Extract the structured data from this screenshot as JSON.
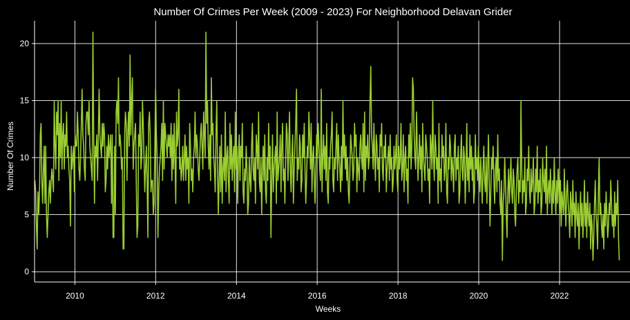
{
  "chart_data": {
    "type": "line",
    "title": "Number Of Crimes Per Week (2009 - 2023) For Neighborhood Delavan Grider",
    "xlabel": "Weeks",
    "ylabel": "Number Of Crimes",
    "xlim": [
      "2009-01-01",
      "2023-09-30"
    ],
    "ylim": [
      -0.9,
      22
    ],
    "x_ticks": [
      "2010",
      "2012",
      "2014",
      "2016",
      "2018",
      "2020",
      "2022"
    ],
    "y_ticks": [
      "0",
      "5",
      "10",
      "15",
      "20"
    ],
    "grid": true,
    "legend": "none",
    "background": "#000000",
    "line_color": "#9acd32",
    "grid_color": "#ffffff",
    "series": [
      {
        "start_week": "2009-01-04",
        "frequency": "weekly",
        "values": [
          8,
          7,
          4,
          2,
          7,
          5,
          7,
          12,
          13,
          8,
          6,
          9,
          11,
          6,
          11,
          5,
          3,
          5,
          7,
          8,
          6,
          8,
          9,
          8,
          7,
          15,
          11,
          9,
          14,
          12,
          15,
          8,
          13,
          10,
          15,
          9,
          12,
          13,
          9,
          12,
          11,
          14,
          10,
          11,
          9,
          8,
          4,
          11,
          9,
          10,
          11,
          7,
          12,
          11,
          11,
          14,
          12,
          9,
          8,
          10,
          13,
          16,
          12,
          11,
          9,
          8,
          13,
          14,
          14,
          12,
          15,
          11,
          10,
          9,
          8,
          21,
          12,
          6,
          11,
          10,
          12,
          8,
          12,
          16,
          12,
          11,
          10,
          13,
          11,
          13,
          12,
          7,
          8,
          11,
          9,
          12,
          10,
          11,
          12,
          6,
          12,
          3,
          3,
          11,
          5,
          14,
          15,
          13,
          17,
          11,
          12,
          11,
          9,
          10,
          2,
          2,
          12,
          14,
          13,
          8,
          12,
          14,
          11,
          19,
          12,
          15,
          17,
          9,
          11,
          12,
          13,
          8,
          3,
          4,
          12,
          11,
          14,
          9,
          10,
          15,
          13,
          10,
          7,
          9,
          11,
          8,
          3,
          13,
          14,
          12,
          7,
          8,
          8,
          5,
          6,
          11,
          16,
          12,
          10,
          3,
          7,
          9,
          10,
          11,
          13,
          8,
          15,
          9,
          13,
          12,
          11,
          10,
          12,
          11,
          12,
          10,
          13,
          8,
          12,
          9,
          13,
          10,
          6,
          14,
          11,
          12,
          16,
          9,
          10,
          8,
          9,
          11,
          8,
          10,
          12,
          8,
          11,
          9,
          10,
          6,
          13,
          11,
          8,
          9,
          7,
          10,
          11,
          14,
          10,
          12,
          11,
          9,
          8,
          10,
          12,
          13,
          11,
          9,
          14,
          12,
          10,
          21,
          13,
          15,
          11,
          9,
          12,
          8,
          17,
          12,
          13,
          10,
          9,
          7,
          12,
          15,
          9,
          5,
          8,
          11,
          7,
          12,
          6,
          9,
          10,
          8,
          14,
          7,
          10,
          11,
          8,
          6,
          13,
          9,
          12,
          8,
          10,
          11,
          7,
          14,
          9,
          11,
          6,
          10,
          12,
          8,
          11,
          10,
          13,
          7,
          6,
          9,
          8,
          11,
          9,
          5,
          6,
          10,
          8,
          7,
          11,
          13,
          9,
          8,
          10,
          6,
          12,
          11,
          9,
          14,
          8,
          7,
          10,
          5,
          9,
          11,
          8,
          12,
          7,
          6,
          10,
          8,
          13,
          9,
          11,
          3,
          8,
          12,
          7,
          9,
          10,
          11,
          6,
          14,
          8,
          9,
          10,
          12,
          7,
          11,
          13,
          8,
          9,
          6,
          10,
          13,
          12,
          8,
          11,
          14,
          9,
          7,
          10,
          12,
          6,
          9,
          11,
          13,
          16,
          8,
          10,
          9,
          12,
          11,
          7,
          8,
          12,
          10,
          13,
          9,
          6,
          8,
          11,
          10,
          14,
          12,
          9,
          13,
          7,
          10,
          11,
          8,
          6,
          9,
          12,
          10,
          13,
          11,
          9,
          8,
          16,
          7,
          10,
          12,
          9,
          11,
          8,
          13,
          7,
          6,
          10,
          9,
          11,
          12,
          14,
          8,
          7,
          10,
          9,
          11,
          13,
          8,
          12,
          10,
          9,
          7,
          11,
          8,
          15,
          10,
          12,
          9,
          11,
          8,
          10,
          7,
          6,
          9,
          12,
          11,
          10,
          8,
          9,
          13,
          11,
          12,
          7,
          10,
          9,
          8,
          11,
          12,
          10,
          9,
          13,
          7,
          14,
          8,
          11,
          10,
          12,
          9,
          10,
          15,
          18,
          12,
          11,
          9,
          13,
          10,
          8,
          12,
          11,
          9,
          10,
          7,
          12,
          11,
          13,
          9,
          8,
          11,
          10,
          12,
          7,
          9,
          10,
          11,
          8,
          12,
          9,
          10,
          7,
          8,
          11,
          9,
          10,
          12,
          8,
          7,
          11,
          9,
          10,
          13,
          8,
          9,
          12,
          7,
          10,
          11,
          8,
          9,
          6,
          12,
          10,
          13,
          9,
          11,
          17,
          16,
          12,
          10,
          9,
          14,
          11,
          8,
          10,
          12,
          9,
          11,
          7,
          13,
          10,
          9,
          8,
          12,
          11,
          10,
          8,
          9,
          6,
          12,
          11,
          9,
          15,
          10,
          8,
          12,
          11,
          9,
          10,
          6,
          13,
          8,
          9,
          7,
          12,
          10,
          11,
          8,
          9,
          13,
          7,
          6,
          10,
          9,
          12,
          11,
          8,
          10,
          9,
          7,
          11,
          12,
          8,
          10,
          9,
          11,
          6,
          7,
          10,
          12,
          9,
          8,
          11,
          10,
          6,
          9,
          13,
          8,
          10,
          7,
          12,
          9,
          11,
          8,
          10,
          6,
          7,
          12,
          9,
          10,
          8,
          11,
          9,
          7,
          10,
          8,
          6,
          9,
          11,
          8,
          7,
          10,
          6,
          9,
          12,
          8,
          4,
          7,
          10,
          9,
          11,
          8,
          6,
          9,
          10,
          7,
          12,
          8,
          9,
          6,
          5,
          8,
          1,
          6,
          7,
          10,
          8,
          5,
          3,
          7,
          9,
          6,
          8,
          10,
          7,
          6,
          9,
          8,
          5,
          4,
          7,
          9,
          10,
          6,
          8,
          7,
          15,
          9,
          6,
          8,
          7,
          10,
          5,
          6,
          9,
          8,
          11,
          7,
          6,
          9,
          7,
          8,
          10,
          5,
          6,
          9,
          7,
          11,
          6,
          8,
          7,
          9,
          5,
          6,
          10,
          8,
          7,
          9,
          6,
          11,
          5,
          7,
          8,
          6,
          9,
          7,
          5,
          8,
          6,
          10,
          7,
          5,
          8,
          6,
          9,
          7,
          5,
          8,
          4,
          7,
          6,
          5,
          9,
          6,
          4,
          7,
          8,
          6,
          5,
          3,
          7,
          6,
          4,
          8,
          5,
          6,
          3,
          7,
          5,
          4,
          6,
          2,
          5,
          7,
          4,
          6,
          3,
          5,
          8,
          4,
          6,
          3,
          7,
          5,
          4,
          6,
          2,
          5,
          4,
          1,
          3,
          6,
          8,
          5,
          4,
          2,
          7,
          10,
          5,
          6,
          4,
          3,
          5,
          2,
          6,
          4,
          7,
          5,
          3,
          4,
          6,
          5,
          8,
          6,
          4,
          5,
          3,
          7,
          4,
          6,
          5,
          8,
          3,
          1
        ]
      }
    ]
  }
}
